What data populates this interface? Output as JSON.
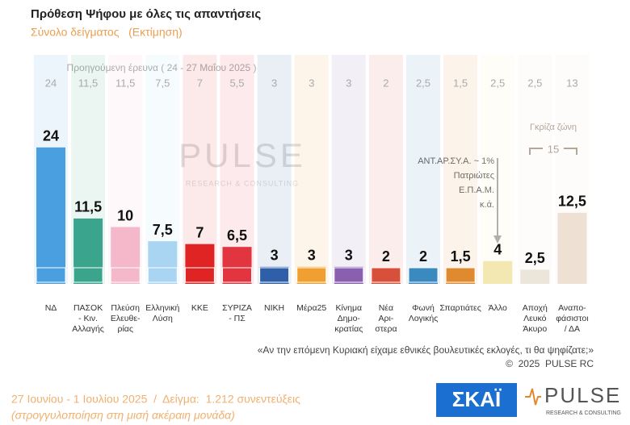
{
  "chart_data": {
    "type": "bar",
    "title": "Πρόθεση Ψήφου με όλες τις απαντήσεις",
    "subtitle": "Σύνολο δείγματος   (Εκτίμηση)",
    "categories": [
      [
        "ΝΔ"
      ],
      [
        "ΠΑΣΟΚ",
        "- Κιν.",
        "Αλλαγής"
      ],
      [
        "Πλεύση",
        "Ελευθε-",
        "ρίας"
      ],
      [
        "Ελληνική",
        "Λύση"
      ],
      [
        "ΚΚΕ"
      ],
      [
        "ΣΥΡΙΖΑ",
        "- ΠΣ"
      ],
      [
        "ΝΙΚΗ"
      ],
      [
        "Μέρα25"
      ],
      [
        "Κίνημα",
        "Δημο-",
        "κρατίας"
      ],
      [
        "Νέα",
        "Αρι-",
        "στερα"
      ],
      [
        "Φωνή",
        "Λογικής"
      ],
      [
        "Σπαρτιάτες"
      ],
      [
        "Άλλο"
      ],
      [
        "Αποχή",
        "Λευκό",
        "Άκυρο"
      ],
      [
        "Αναπο-",
        "φάσιστοι",
        "/ ΔΑ"
      ]
    ],
    "values": [
      24,
      11.5,
      10,
      7.5,
      7,
      6.5,
      3,
      3,
      3,
      2,
      2,
      1.5,
      4,
      2.5,
      12.5
    ],
    "value_labels": [
      "24",
      "11,5",
      "10",
      "7,5",
      "7",
      "6,5",
      "3",
      "3",
      "3",
      "2",
      "2",
      "1,5",
      "4",
      "2,5",
      "12,5"
    ],
    "colors": [
      "#4a9fe0",
      "#3aa58c",
      "#f4b8ca",
      "#a9d4f2",
      "#e02424",
      "#e23540",
      "#2e5fa8",
      "#f0a030",
      "#8a5fb0",
      "#d9503a",
      "#3a8ac0",
      "#e08a30",
      "#f3e7b2",
      "#ece6da",
      "#eee0d3"
    ],
    "previous": {
      "title": "Προηγούμενη έρευνα ( 24 - 27 Μαΐου 2025 )",
      "values": [
        24,
        11.5,
        11.5,
        7.5,
        7,
        5.5,
        3,
        3,
        3,
        2,
        2.5,
        1.5,
        2.5,
        2.5,
        13
      ],
      "value_labels": [
        "24",
        "11,5",
        "11,5",
        "7,5",
        "7",
        "5,5",
        "3",
        "3",
        "3",
        "2",
        "2,5",
        "1,5",
        "2,5",
        "2,5",
        "13"
      ]
    },
    "other_parties": [
      "ΑΝΤ.ΑΡ.ΣΥ.Α. ~ 1%",
      "Πατριώτες",
      "Ε.Π.Α.Μ.",
      "κ.ά."
    ],
    "gray_zone": {
      "label": "Γκρίζα ζώνη",
      "value": 15
    },
    "watermark": {
      "name": "PULSE",
      "tagline": "RESEARCH & CONSULTING"
    },
    "question": "«Αν την επόμενη Κυριακή είχαμε εθνικές βουλευτικές εκλογές, τι θα ψηφίζατε;»",
    "copyright": "©  2025  PULSE RC",
    "footer": [
      "27 Ιουνίου - 1 Ιουλίου 2025  /  Δείγμα:  1.212 συνεντεύξεις",
      "(στρογγυλοποίηση στη μισή ακέραιη μονάδα)"
    ],
    "logos": {
      "channel": "ΣΚΑΪ",
      "pollster": "PULSE",
      "pollster_tagline": "RESEARCH & CONSULTING"
    }
  }
}
